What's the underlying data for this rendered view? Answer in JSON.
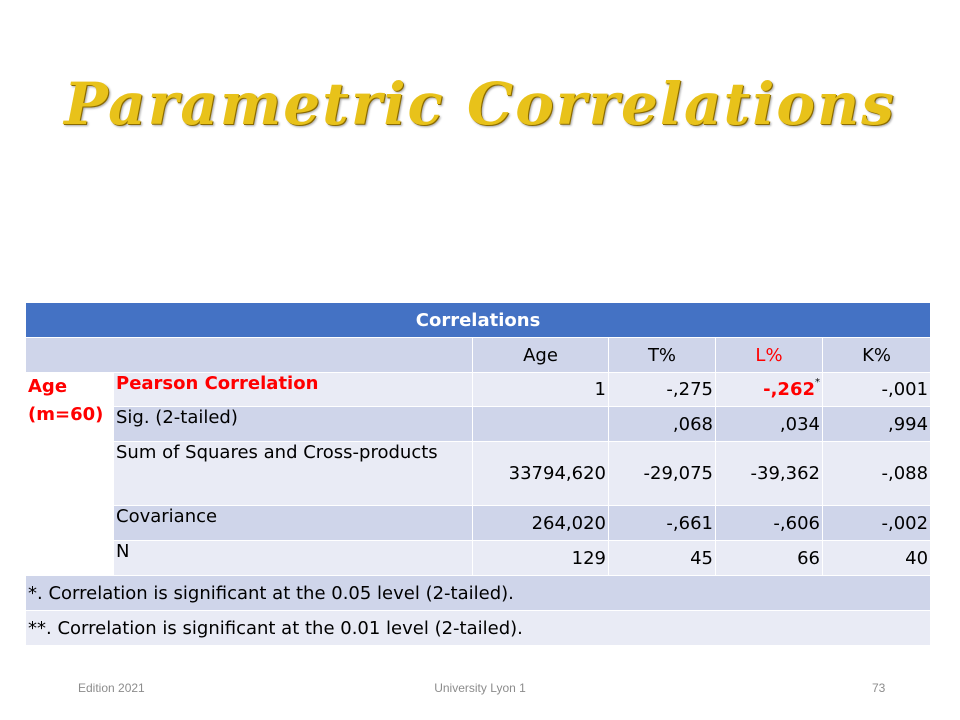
{
  "slide": {
    "title": "Parametric Correlations",
    "footer": {
      "left": "Edition 2021",
      "center": "University Lyon 1",
      "right": "73"
    }
  },
  "table": {
    "caption": "Correlations",
    "columns": [
      "Age",
      "T%",
      "L%",
      "K%"
    ],
    "group_label_line1": "Age",
    "group_label_line2": "(m=60)",
    "rows": [
      {
        "label": "Pearson Correlation",
        "values": [
          "1",
          "-,275",
          "-,262",
          "-,001"
        ],
        "marker": "*"
      },
      {
        "label": "Sig. (2-tailed)",
        "values": [
          "",
          ",068",
          ",034",
          ",994"
        ]
      },
      {
        "label": "Sum of Squares and Cross-products",
        "values": [
          "33794,620",
          "-29,075",
          "-39,362",
          "-,088"
        ]
      },
      {
        "label": "Covariance",
        "values": [
          "264,020",
          "-,661",
          "-,606",
          "-,002"
        ]
      },
      {
        "label": "N",
        "values": [
          "129",
          "45",
          "66",
          "40"
        ]
      }
    ],
    "footnotes": [
      "*. Correlation is significant at the 0.05 level (2-tailed).",
      "**. Correlation is significant at the 0.01 level (2-tailed)."
    ]
  },
  "colors": {
    "title": "#e8c21a",
    "header": "#4472c4",
    "highlight": "#ff0000",
    "row_dark": "#cfd5ea",
    "row_light": "#e9ebf5"
  }
}
